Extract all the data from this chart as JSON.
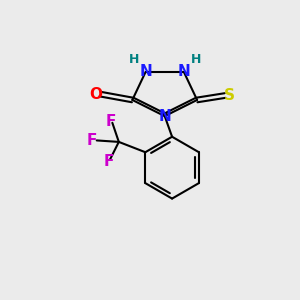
{
  "background_color": "#ebebeb",
  "N_color": "#1a1aff",
  "H_color": "#008080",
  "O_color": "#ff0000",
  "S_color": "#cccc00",
  "F_color": "#cc00cc",
  "bond_lw": 1.5,
  "font_size_atoms": 11,
  "font_size_H": 9,
  "xlim": [
    0,
    10
  ],
  "ylim": [
    0,
    10
  ]
}
